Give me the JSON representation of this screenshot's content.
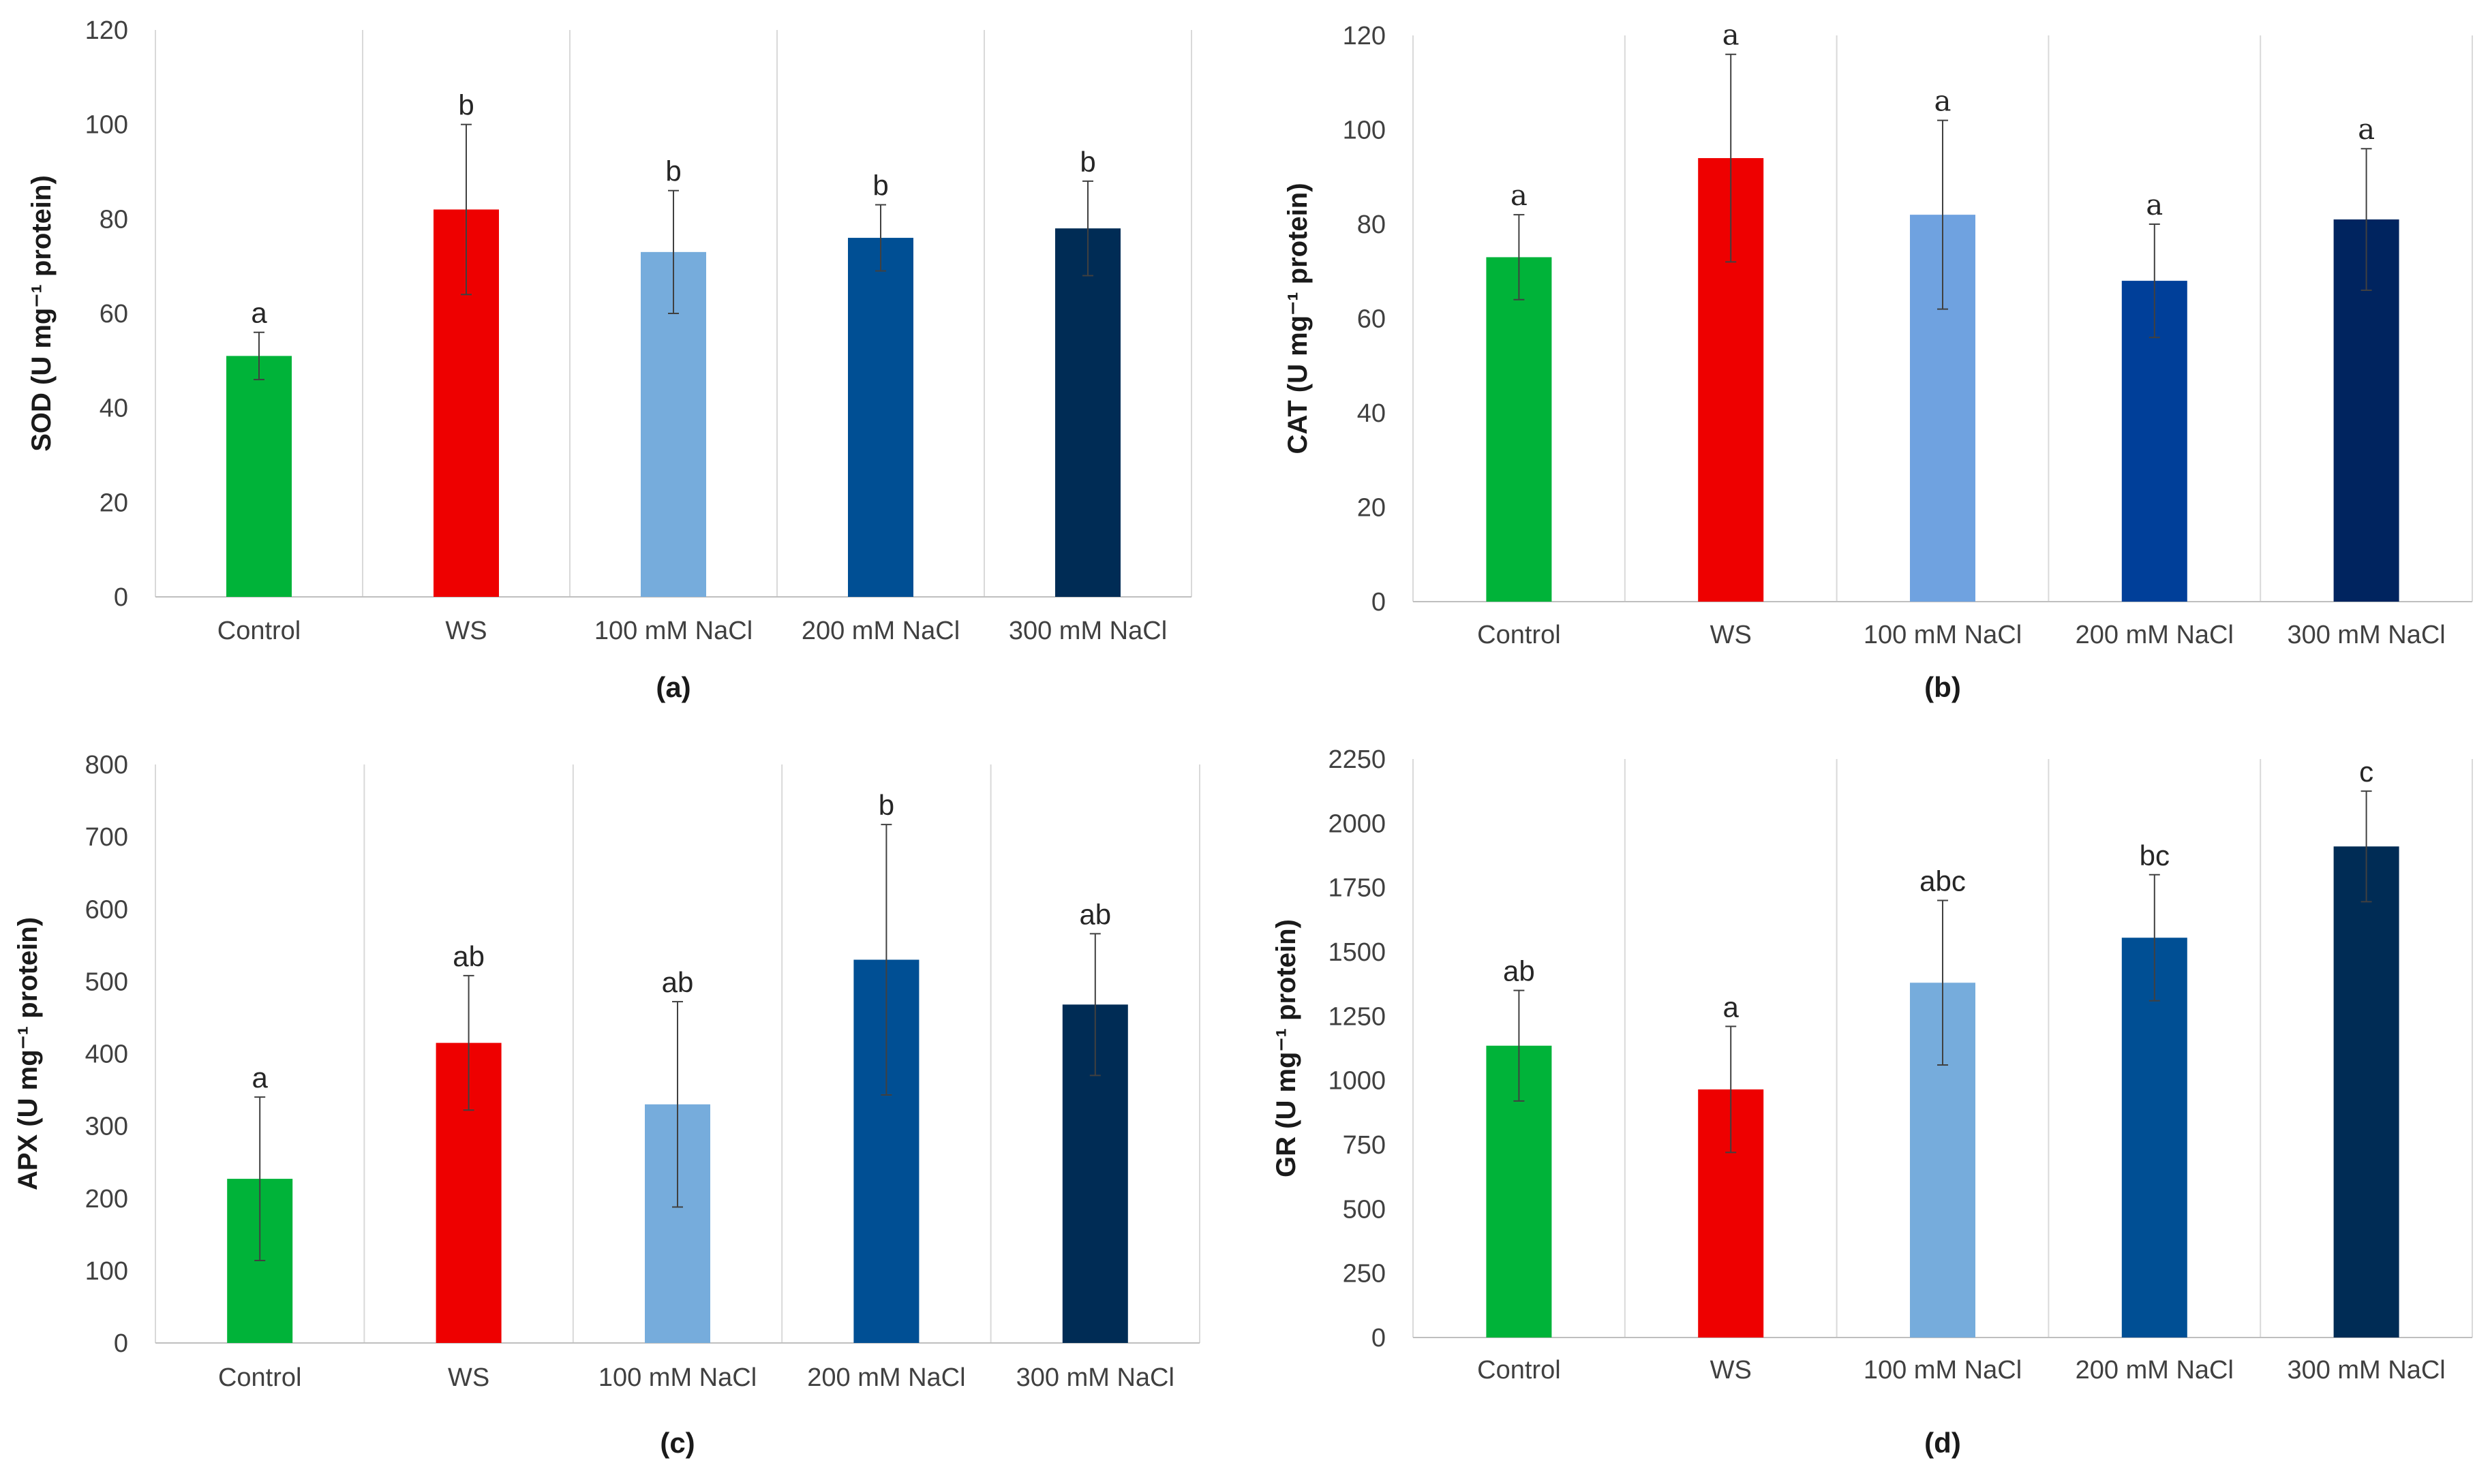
{
  "chart_data": [
    {
      "type": "bar",
      "panel_label": "(a)",
      "ylabel": "SOD (U mg⁻¹ protein)",
      "ylim": [
        0,
        120
      ],
      "yticks": [
        0,
        20,
        40,
        60,
        80,
        100,
        120
      ],
      "categories": [
        "Control",
        "WS",
        "100 mM NaCl",
        "200 mM NaCl",
        "300 mM NaCl"
      ],
      "values": [
        51,
        82,
        73,
        76,
        78
      ],
      "errors": [
        5,
        18,
        13,
        7,
        10
      ],
      "letters": [
        "a",
        "b",
        "b",
        "b",
        "b"
      ],
      "colors": [
        "#00b339",
        "#ee0000",
        "#76acdc",
        "#004f94",
        "#002c55"
      ],
      "letter_font": "sans"
    },
    {
      "type": "bar",
      "panel_label": "(b)",
      "ylabel": "CAT (U mg⁻¹ protein)",
      "ylim": [
        0,
        120
      ],
      "yticks": [
        0,
        20,
        40,
        60,
        80,
        100,
        120
      ],
      "categories": [
        "Control",
        "WS",
        "100 mM NaCl",
        "200 mM NaCl",
        "300 mM NaCl"
      ],
      "values": [
        73,
        94,
        82,
        68,
        81
      ],
      "errors": [
        9,
        22,
        20,
        12,
        15
      ],
      "letters": [
        "a",
        "a",
        "a",
        "a",
        "a"
      ],
      "colors": [
        "#00b339",
        "#ee0000",
        "#6fa2e0",
        "#003f99",
        "#00245f"
      ],
      "letter_font": "serif"
    },
    {
      "type": "bar",
      "panel_label": "(c)",
      "ylabel": "APX (U mg⁻¹ protein)",
      "ylim": [
        0,
        800
      ],
      "yticks": [
        0,
        100,
        200,
        300,
        400,
        500,
        600,
        700,
        800
      ],
      "categories": [
        "Control",
        "WS",
        "100 mM NaCl",
        "200 mM NaCl",
        "300 mM NaCl"
      ],
      "values": [
        227,
        415,
        330,
        530,
        468
      ],
      "errors": [
        113,
        93,
        142,
        187,
        98
      ],
      "letters": [
        "a",
        "ab",
        "ab",
        "b",
        "ab"
      ],
      "colors": [
        "#00b339",
        "#ee0000",
        "#76acdc",
        "#004f94",
        "#002c55"
      ],
      "letter_font": "sans"
    },
    {
      "type": "bar",
      "panel_label": "(d)",
      "ylabel": "GR (U mg⁻¹ protein)",
      "ylim": [
        0,
        2250
      ],
      "yticks": [
        0,
        250,
        500,
        750,
        1000,
        1250,
        1500,
        1750,
        2000,
        2250
      ],
      "categories": [
        "Control",
        "WS",
        "100 mM NaCl",
        "200 mM NaCl",
        "300 mM NaCl"
      ],
      "values": [
        1135,
        965,
        1380,
        1555,
        1910
      ],
      "errors": [
        215,
        245,
        320,
        245,
        215
      ],
      "letters": [
        "ab",
        "a",
        "abc",
        "bc",
        "c"
      ],
      "colors": [
        "#00b339",
        "#ee0000",
        "#76acdc",
        "#004f94",
        "#002c55"
      ],
      "letter_font": "sans"
    }
  ]
}
